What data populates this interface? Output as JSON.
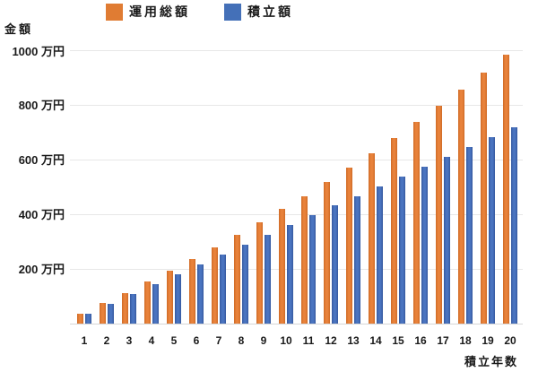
{
  "chart_data": {
    "type": "bar",
    "title": "",
    "ylabel": "金額",
    "xlabel": "積立年数",
    "y_unit": "万円",
    "categories": [
      1,
      2,
      3,
      4,
      5,
      6,
      7,
      8,
      9,
      10,
      11,
      12,
      13,
      14,
      15,
      16,
      17,
      18,
      19,
      20
    ],
    "x_tick_labels": [
      "1",
      "2",
      "3",
      "4",
      "5",
      "6",
      "7",
      "8",
      "9",
      "10",
      "11",
      "12",
      "13",
      "14",
      "15",
      "16",
      "17",
      "18",
      "19",
      "20"
    ],
    "series": [
      {
        "key": "total",
        "name": "運用総額",
        "color": "#E07C33",
        "values": [
          37,
          74,
          113,
          153,
          194,
          236,
          280,
          325,
          371,
          419,
          468,
          519,
          572,
          625,
          681,
          738,
          797,
          858,
          920,
          985
        ]
      },
      {
        "key": "principal",
        "name": "積立額",
        "color": "#4470B8",
        "values": [
          36,
          72,
          108,
          144,
          180,
          216,
          252,
          288,
          324,
          360,
          396,
          432,
          468,
          504,
          540,
          576,
          612,
          648,
          684,
          720
        ]
      }
    ],
    "y_ticks": [
      200,
      400,
      600,
      800,
      1000
    ],
    "y_tick_labels": [
      "200 万円",
      "400 万円",
      "600 万円",
      "800 万円",
      "1000 万円"
    ],
    "ylim": [
      0,
      1018
    ],
    "grid": true,
    "legend_position": "top-left"
  }
}
